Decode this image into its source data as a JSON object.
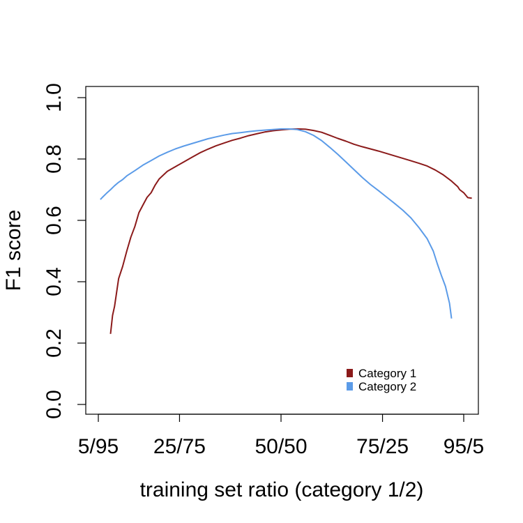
{
  "chart_data": {
    "type": "line",
    "title": "",
    "xlabel": "training set ratio (category 1/2)",
    "ylabel": "F1 score",
    "xlim": [
      5,
      95
    ],
    "ylim": [
      0.0,
      1.0
    ],
    "x_ticks": [
      {
        "value": 5,
        "label": "5/95"
      },
      {
        "value": 25,
        "label": "25/75"
      },
      {
        "value": 50,
        "label": "50/50"
      },
      {
        "value": 75,
        "label": "75/25"
      },
      {
        "value": 95,
        "label": "95/5"
      }
    ],
    "y_ticks": [
      {
        "value": 0.0,
        "label": "0.0"
      },
      {
        "value": 0.2,
        "label": "0.2"
      },
      {
        "value": 0.4,
        "label": "0.4"
      },
      {
        "value": 0.6,
        "label": "0.6"
      },
      {
        "value": 0.8,
        "label": "0.8"
      },
      {
        "value": 1.0,
        "label": "1.0"
      }
    ],
    "grid": false,
    "legend_position": "bottom-right",
    "series": [
      {
        "name": "Category 1",
        "color": "#8b1a1a",
        "points": [
          [
            8,
            0.23
          ],
          [
            8.5,
            0.29
          ],
          [
            9,
            0.32
          ],
          [
            10,
            0.41
          ],
          [
            11,
            0.45
          ],
          [
            12,
            0.5
          ],
          [
            13,
            0.545
          ],
          [
            14,
            0.58
          ],
          [
            15,
            0.625
          ],
          [
            16,
            0.65
          ],
          [
            17,
            0.675
          ],
          [
            18,
            0.69
          ],
          [
            19,
            0.715
          ],
          [
            20,
            0.735
          ],
          [
            22,
            0.76
          ],
          [
            24,
            0.775
          ],
          [
            26,
            0.79
          ],
          [
            28,
            0.805
          ],
          [
            30,
            0.82
          ],
          [
            32,
            0.832
          ],
          [
            34,
            0.843
          ],
          [
            36,
            0.852
          ],
          [
            38,
            0.861
          ],
          [
            40,
            0.868
          ],
          [
            42,
            0.876
          ],
          [
            44,
            0.882
          ],
          [
            46,
            0.888
          ],
          [
            48,
            0.892
          ],
          [
            50,
            0.895
          ],
          [
            52,
            0.897
          ],
          [
            54,
            0.898
          ],
          [
            56,
            0.897
          ],
          [
            58,
            0.893
          ],
          [
            60,
            0.887
          ],
          [
            62,
            0.877
          ],
          [
            64,
            0.867
          ],
          [
            66,
            0.858
          ],
          [
            68,
            0.848
          ],
          [
            70,
            0.84
          ],
          [
            72,
            0.833
          ],
          [
            74,
            0.826
          ],
          [
            76,
            0.818
          ],
          [
            78,
            0.81
          ],
          [
            80,
            0.802
          ],
          [
            82,
            0.794
          ],
          [
            84,
            0.786
          ],
          [
            86,
            0.777
          ],
          [
            88,
            0.764
          ],
          [
            90,
            0.748
          ],
          [
            92,
            0.728
          ],
          [
            93.5,
            0.71
          ],
          [
            94,
            0.7
          ],
          [
            95,
            0.69
          ],
          [
            96,
            0.674
          ],
          [
            97,
            0.672
          ]
        ]
      },
      {
        "name": "Category 2",
        "color": "#5b9be8",
        "points": [
          [
            5.5,
            0.668
          ],
          [
            6,
            0.675
          ],
          [
            7,
            0.688
          ],
          [
            8,
            0.7
          ],
          [
            9,
            0.713
          ],
          [
            10,
            0.724
          ],
          [
            11,
            0.733
          ],
          [
            12,
            0.745
          ],
          [
            14,
            0.762
          ],
          [
            16,
            0.78
          ],
          [
            18,
            0.795
          ],
          [
            20,
            0.81
          ],
          [
            22,
            0.822
          ],
          [
            24,
            0.833
          ],
          [
            26,
            0.842
          ],
          [
            28,
            0.85
          ],
          [
            30,
            0.858
          ],
          [
            32,
            0.866
          ],
          [
            34,
            0.872
          ],
          [
            36,
            0.878
          ],
          [
            38,
            0.883
          ],
          [
            40,
            0.886
          ],
          [
            42,
            0.889
          ],
          [
            44,
            0.892
          ],
          [
            46,
            0.894
          ],
          [
            48,
            0.896
          ],
          [
            50,
            0.898
          ],
          [
            52,
            0.898
          ],
          [
            54,
            0.896
          ],
          [
            56,
            0.889
          ],
          [
            58,
            0.877
          ],
          [
            60,
            0.86
          ],
          [
            62,
            0.838
          ],
          [
            64,
            0.815
          ],
          [
            66,
            0.79
          ],
          [
            68,
            0.765
          ],
          [
            70,
            0.74
          ],
          [
            72,
            0.717
          ],
          [
            74,
            0.697
          ],
          [
            76,
            0.676
          ],
          [
            78,
            0.655
          ],
          [
            80,
            0.633
          ],
          [
            82,
            0.608
          ],
          [
            84,
            0.576
          ],
          [
            86,
            0.54
          ],
          [
            87.5,
            0.5
          ],
          [
            88.5,
            0.458
          ],
          [
            89.5,
            0.42
          ],
          [
            90.5,
            0.385
          ],
          [
            91.5,
            0.33
          ],
          [
            92,
            0.28
          ]
        ]
      }
    ]
  }
}
